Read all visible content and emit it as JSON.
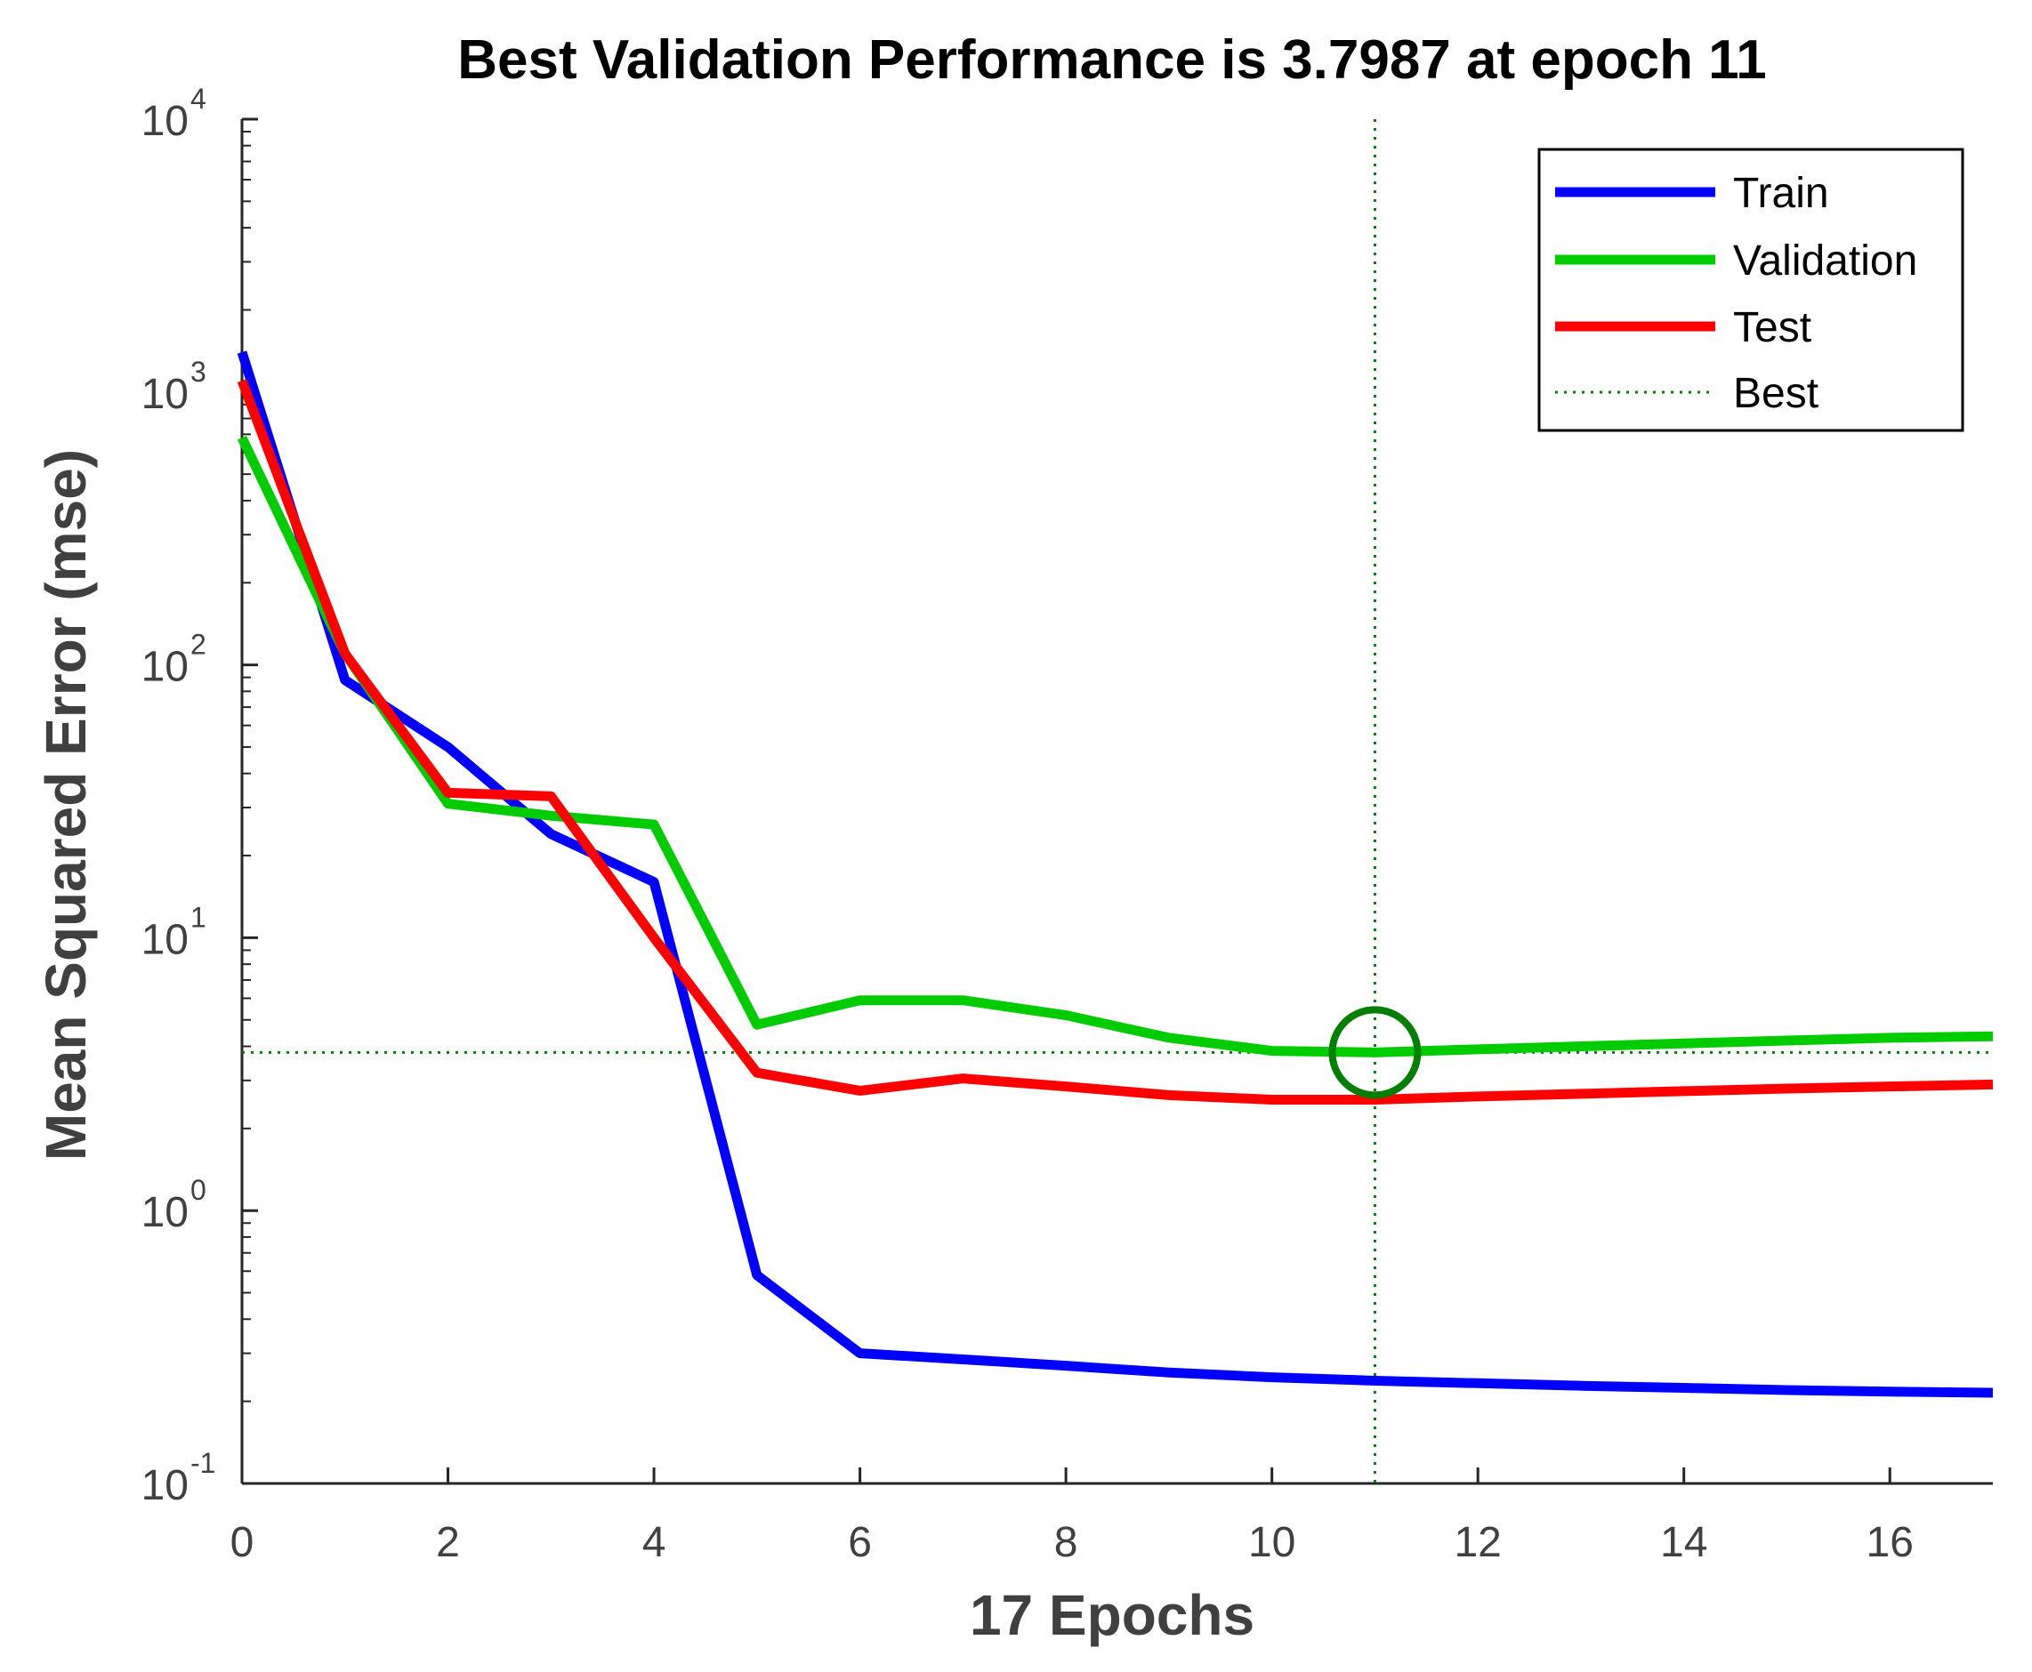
{
  "chart_data": {
    "type": "line",
    "title": "Best Validation Performance is 3.7987 at epoch 11",
    "xlabel": "17 Epochs",
    "ylabel": "Mean Squared Error  (mse)",
    "yscale": "log",
    "xlim": [
      0,
      17
    ],
    "ylim_exp": [
      -1,
      4
    ],
    "xticks": [
      0,
      2,
      4,
      6,
      8,
      10,
      12,
      14,
      16
    ],
    "yticks": [
      {
        "base": "10",
        "exp": "-1",
        "value": 0.1
      },
      {
        "base": "10",
        "exp": "0",
        "value": 1
      },
      {
        "base": "10",
        "exp": "1",
        "value": 10
      },
      {
        "base": "10",
        "exp": "2",
        "value": 100
      },
      {
        "base": "10",
        "exp": "3",
        "value": 1000
      },
      {
        "base": "10",
        "exp": "4",
        "value": 10000
      }
    ],
    "x": [
      0,
      1,
      2,
      3,
      4,
      5,
      6,
      7,
      8,
      9,
      10,
      11,
      12,
      13,
      14,
      15,
      16,
      17
    ],
    "series": [
      {
        "name": "Train",
        "color": "#0000ff",
        "values": [
          1400,
          88,
          50,
          24,
          16,
          0.58,
          0.3,
          0.285,
          0.27,
          0.255,
          0.245,
          0.238,
          0.233,
          0.228,
          0.224,
          0.22,
          0.217,
          0.215
        ]
      },
      {
        "name": "Validation",
        "color": "#00cc00",
        "values": [
          680,
          110,
          31,
          28,
          26,
          4.8,
          5.9,
          5.9,
          5.2,
          4.3,
          3.85,
          3.7987,
          3.9,
          4.0,
          4.1,
          4.2,
          4.3,
          4.35
        ]
      },
      {
        "name": "Test",
        "color": "#ff0000",
        "values": [
          1100,
          110,
          34,
          33,
          10,
          3.2,
          2.75,
          3.05,
          2.85,
          2.65,
          2.55,
          2.55,
          2.62,
          2.68,
          2.74,
          2.8,
          2.85,
          2.9
        ]
      }
    ],
    "best": {
      "name": "Best",
      "epoch": 11,
      "value": 3.7987,
      "color": "#007f00"
    },
    "legend": {
      "position": "top-right",
      "entries": [
        {
          "label": "Train",
          "color": "#0000ff",
          "style": "solid"
        },
        {
          "label": "Validation",
          "color": "#00cc00",
          "style": "solid"
        },
        {
          "label": "Test",
          "color": "#ff0000",
          "style": "solid"
        },
        {
          "label": "Best",
          "color": "#007f00",
          "style": "dotted"
        }
      ]
    }
  }
}
